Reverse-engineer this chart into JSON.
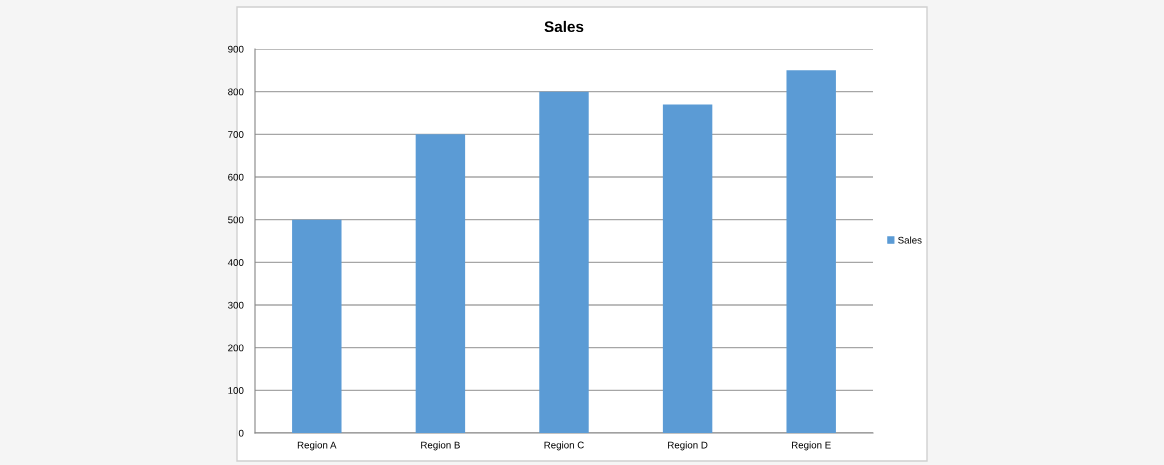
{
  "chart_data": {
    "type": "bar",
    "title": "Sales",
    "categories": [
      "Region A",
      "Region B",
      "Region C",
      "Region D",
      "Region E"
    ],
    "series": [
      {
        "name": "Sales",
        "color": "#5b9bd5",
        "values": [
          500,
          700,
          800,
          770,
          850
        ]
      }
    ],
    "ylim": [
      0,
      900
    ],
    "yticks": [
      0,
      100,
      200,
      300,
      400,
      500,
      600,
      700,
      800,
      900
    ],
    "grid": "y",
    "legend": "right"
  }
}
